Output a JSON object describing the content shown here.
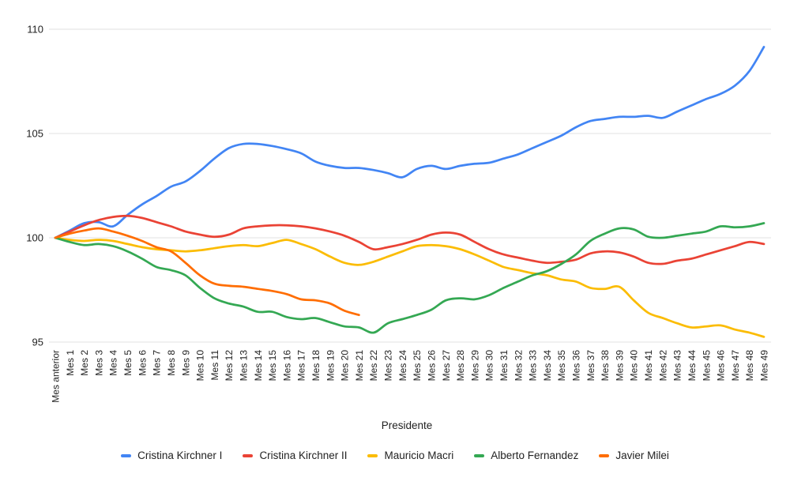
{
  "colors": {
    "background": "#ffffff",
    "grid": "#e0e0e0",
    "axis_text": "#222222",
    "legend_text": "#222222"
  },
  "chart_data": {
    "type": "line",
    "title": "",
    "xlabel": "Presidente",
    "ylabel": "",
    "ylim": [
      95,
      110
    ],
    "yticks": [
      95,
      100,
      105,
      110
    ],
    "grid": true,
    "legend_position": "bottom",
    "x_labels": [
      "Mes anterior",
      "Mes 1",
      "Mes 2",
      "Mes 3",
      "Mes 4",
      "Mes 5",
      "Mes 6",
      "Mes 7",
      "Mes 8",
      "Mes 9",
      "Mes 10",
      "Mes 11",
      "Mes 12",
      "Mes 13",
      "Mes 14",
      "Mes 15",
      "Mes 16",
      "Mes 17",
      "Mes 18",
      "Mes 19",
      "Mes 20",
      "Mes 21",
      "Mes 22",
      "Mes 23",
      "Mes 24",
      "Mes 25",
      "Mes 26",
      "Mes 27",
      "Mes 28",
      "Mes 29",
      "Mes 30",
      "Mes 31",
      "Mes 32",
      "Mes 33",
      "Mes 34",
      "Mes 35",
      "Mes 36",
      "Mes 37",
      "Mes 38",
      "Mes 39",
      "Mes 40",
      "Mes 41",
      "Mes 42",
      "Mes 43",
      "Mes 44",
      "Mes 45",
      "Mes 46",
      "Mes 47",
      "Mes 48",
      "Mes 49"
    ],
    "series": [
      {
        "name": "Cristina Kirchner I",
        "color": "#4285F4",
        "values": [
          100,
          100.35,
          100.7,
          100.75,
          100.55,
          101.1,
          101.6,
          102.0,
          102.45,
          102.7,
          103.2,
          103.8,
          104.3,
          104.5,
          104.5,
          104.4,
          104.25,
          104.05,
          103.65,
          103.45,
          103.35,
          103.35,
          103.25,
          103.1,
          102.9,
          103.3,
          103.45,
          103.3,
          103.45,
          103.55,
          103.6,
          103.8,
          104.0,
          104.3,
          104.6,
          104.9,
          105.3,
          105.6,
          105.7,
          105.8,
          105.8,
          105.85,
          105.75,
          106.05,
          106.35,
          106.65,
          106.9,
          107.3,
          108.0,
          109.15
        ]
      },
      {
        "name": "Cristina Kirchner II",
        "color": "#EA4335",
        "values": [
          100,
          100.3,
          100.6,
          100.85,
          101.0,
          101.05,
          100.95,
          100.75,
          100.55,
          100.3,
          100.15,
          100.05,
          100.15,
          100.45,
          100.55,
          100.6,
          100.6,
          100.55,
          100.45,
          100.3,
          100.1,
          99.8,
          99.45,
          99.55,
          99.7,
          99.9,
          100.15,
          100.25,
          100.15,
          99.8,
          99.45,
          99.2,
          99.05,
          98.9,
          98.8,
          98.85,
          98.95,
          99.25,
          99.35,
          99.3,
          99.1,
          98.8,
          98.75,
          98.9,
          99.0,
          99.2,
          99.4,
          99.6,
          99.8,
          99.7
        ]
      },
      {
        "name": "Mauricio Macri",
        "color": "#FBBC04",
        "values": [
          100,
          99.9,
          99.85,
          99.9,
          99.85,
          99.7,
          99.55,
          99.45,
          99.4,
          99.35,
          99.4,
          99.5,
          99.6,
          99.65,
          99.6,
          99.75,
          99.9,
          99.7,
          99.45,
          99.1,
          98.8,
          98.7,
          98.85,
          99.1,
          99.35,
          99.6,
          99.65,
          99.6,
          99.45,
          99.2,
          98.9,
          98.6,
          98.45,
          98.3,
          98.2,
          98.0,
          97.9,
          97.6,
          97.55,
          97.65,
          97.0,
          96.4,
          96.15,
          95.9,
          95.7,
          95.75,
          95.8,
          95.6,
          95.45,
          95.25
        ]
      },
      {
        "name": "Alberto Fernandez",
        "color": "#34A853",
        "values": [
          100,
          99.8,
          99.65,
          99.7,
          99.6,
          99.35,
          99.0,
          98.6,
          98.45,
          98.2,
          97.6,
          97.1,
          96.85,
          96.7,
          96.45,
          96.45,
          96.2,
          96.1,
          96.15,
          95.95,
          95.75,
          95.7,
          95.45,
          95.9,
          96.1,
          96.3,
          96.55,
          97.0,
          97.1,
          97.05,
          97.25,
          97.6,
          97.9,
          98.2,
          98.4,
          98.75,
          99.2,
          99.85,
          100.2,
          100.45,
          100.4,
          100.05,
          100.0,
          100.1,
          100.2,
          100.3,
          100.55,
          100.5,
          100.55,
          100.7
        ]
      },
      {
        "name": "Javier Milei",
        "color": "#FF6D01",
        "values": [
          100,
          100.2,
          100.35,
          100.45,
          100.3,
          100.1,
          99.85,
          99.55,
          99.35,
          98.8,
          98.2,
          97.8,
          97.7,
          97.65,
          97.55,
          97.45,
          97.3,
          97.05,
          97.0,
          96.85,
          96.5,
          96.3
        ]
      }
    ]
  }
}
